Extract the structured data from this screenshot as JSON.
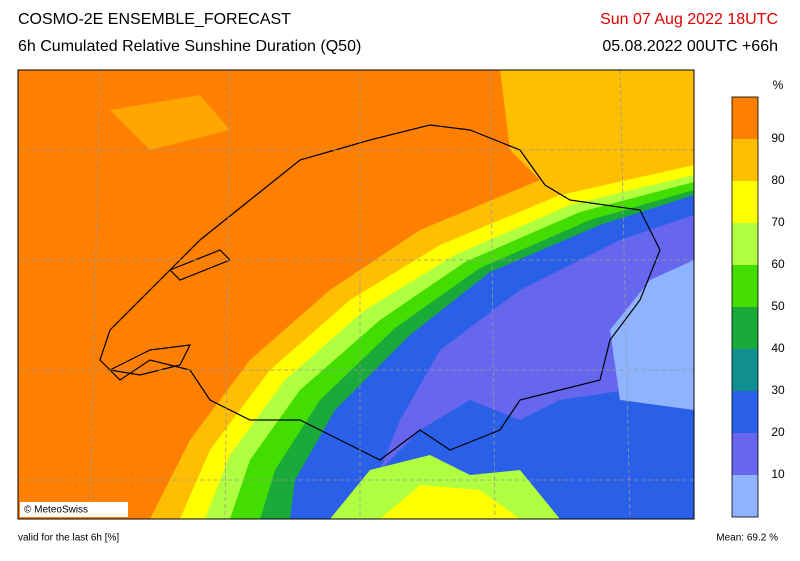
{
  "header": {
    "title": "COSMO-2E ENSEMBLE_FORECAST",
    "subtitle": "6h Cumulated Relative Sunshine Duration (Q50)",
    "valid_time": "Sun 07 Aug 2022 18UTC",
    "run": "05.08.2022 00UTC +66h"
  },
  "legend": {
    "unit": "%",
    "ticks": [
      10,
      20,
      30,
      40,
      50,
      60,
      70,
      80,
      90
    ],
    "colors": [
      "#8fb3ff",
      "#6666ee",
      "#2a5fe8",
      "#0f8f8f",
      "#1aaa3a",
      "#44dd00",
      "#b0ff40",
      "#ffff00",
      "#ffbf00",
      "#ff7f00"
    ]
  },
  "map": {
    "credit": "© MeteoSwiss"
  },
  "footer": {
    "note": "valid for the last 6h [%]",
    "mean": "Mean:  69.2 %"
  }
}
